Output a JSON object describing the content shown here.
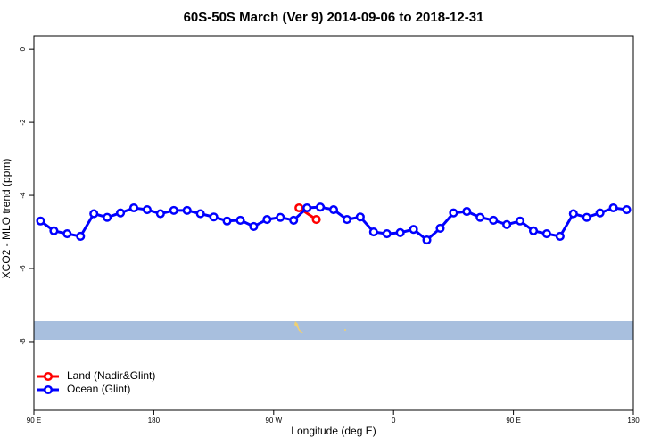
{
  "chart_data": {
    "type": "line",
    "title": "60S-50S March (Ver 9)   2014-09-06 to 2018-12-31",
    "x_label": "Longitude (deg E)",
    "y_label": "XCO2 - MLO trend (ppm)",
    "xlim": [
      90,
      540
    ],
    "ylim": [
      -9.88,
      0.37
    ],
    "xticks": [
      {
        "value": 90,
        "label": "90 E"
      },
      180,
      {
        "value": 270,
        "label": "90 W"
      },
      {
        "value": 360,
        "label": "0"
      },
      {
        "value": 450,
        "label": "90 E"
      },
      {
        "value": 540,
        "label": "180"
      }
    ],
    "yticks": [
      0,
      -2,
      -4,
      -6,
      -8
    ],
    "legend": "bottom-left",
    "series": [
      {
        "name": "Land (Nadir&Glint)",
        "color": "#ff0000",
        "x": [
          289,
          302
        ],
        "values": [
          -4.34,
          -4.66
        ]
      },
      {
        "name": "Ocean (Glint)",
        "color": "#0000ff",
        "x": [
          95,
          105,
          115,
          125,
          135,
          145,
          155,
          165,
          175,
          185,
          195,
          205,
          215,
          225,
          235,
          245,
          255,
          265,
          275,
          285,
          295,
          305,
          315,
          325,
          335,
          345,
          355,
          365,
          375,
          385,
          395,
          405,
          415,
          425,
          435,
          445,
          455,
          465,
          475,
          485,
          495,
          505,
          515,
          525,
          535
        ],
        "values": [
          -4.7,
          -4.97,
          -5.05,
          -5.12,
          -4.5,
          -4.6,
          -4.48,
          -4.34,
          -4.39,
          -4.5,
          -4.41,
          -4.41,
          -4.5,
          -4.59,
          -4.7,
          -4.68,
          -4.85,
          -4.66,
          -4.6,
          -4.68,
          -4.34,
          -4.32,
          -4.39,
          -4.66,
          -4.59,
          -5.0,
          -5.05,
          -5.02,
          -4.93,
          -5.22,
          -4.9,
          -4.48,
          -4.44,
          -4.6,
          -4.68,
          -4.8,
          -4.7,
          -4.97,
          -5.05,
          -5.12,
          -4.5,
          -4.6,
          -4.48,
          -4.34,
          -4.39
        ]
      }
    ]
  }
}
